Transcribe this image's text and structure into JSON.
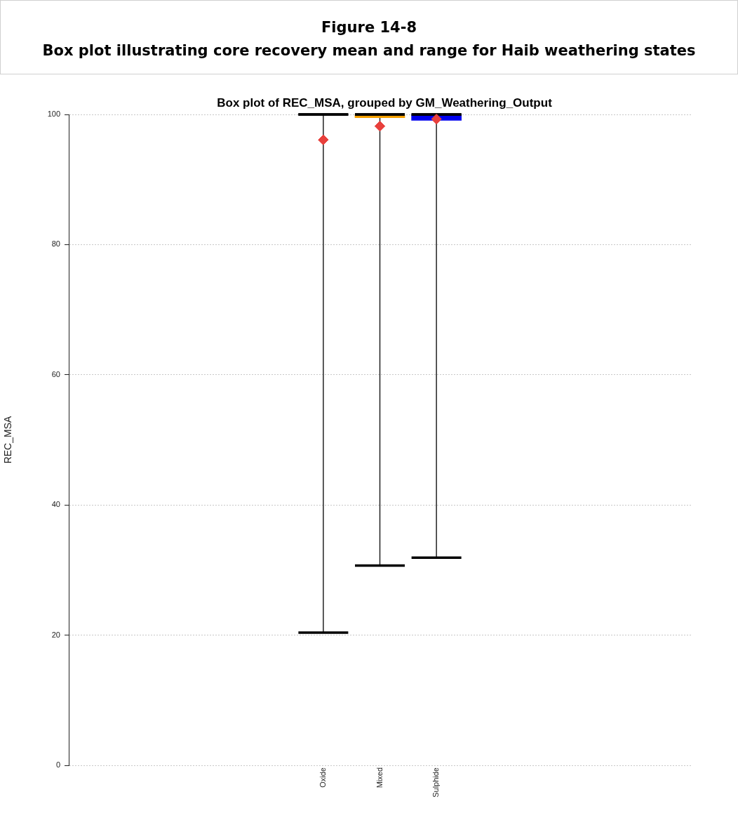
{
  "chart_data": {
    "type": "box",
    "title": "Figure 14-8",
    "subtitle": "Box plot illustrating core recovery mean and range for Haib weathering states",
    "annotations": [
      "Box plot of REC_MSA, grouped by GM_Weathering_Output"
    ],
    "ylabel": "REC_MSA",
    "categories": [
      null,
      null,
      null,
      null,
      "Oxide",
      "Mixed",
      "Sulphide",
      null,
      null,
      null,
      null
    ],
    "colors": [
      null,
      null,
      null,
      null,
      "#000000",
      "#f5a000",
      "#0000ee",
      null,
      null,
      null,
      null
    ],
    "boxes": [
      null,
      null,
      null,
      null,
      {
        "low": 20.4,
        "q1": 100,
        "median": 100,
        "q3": 100,
        "high": 100,
        "mean": 96.1
      },
      {
        "low": 30.7,
        "q1": 99.5,
        "median": 100,
        "q3": 100,
        "high": 100,
        "mean": 98.2
      },
      {
        "low": 31.9,
        "q1": 99.1,
        "median": 100,
        "q3": 100,
        "high": 100,
        "mean": 99.3
      },
      null,
      null,
      null,
      null
    ],
    "ylim": [
      0,
      100
    ],
    "yticks": [
      0,
      20,
      40,
      60,
      80,
      100
    ],
    "grid": "y",
    "marker": "diamond",
    "legend": false
  }
}
